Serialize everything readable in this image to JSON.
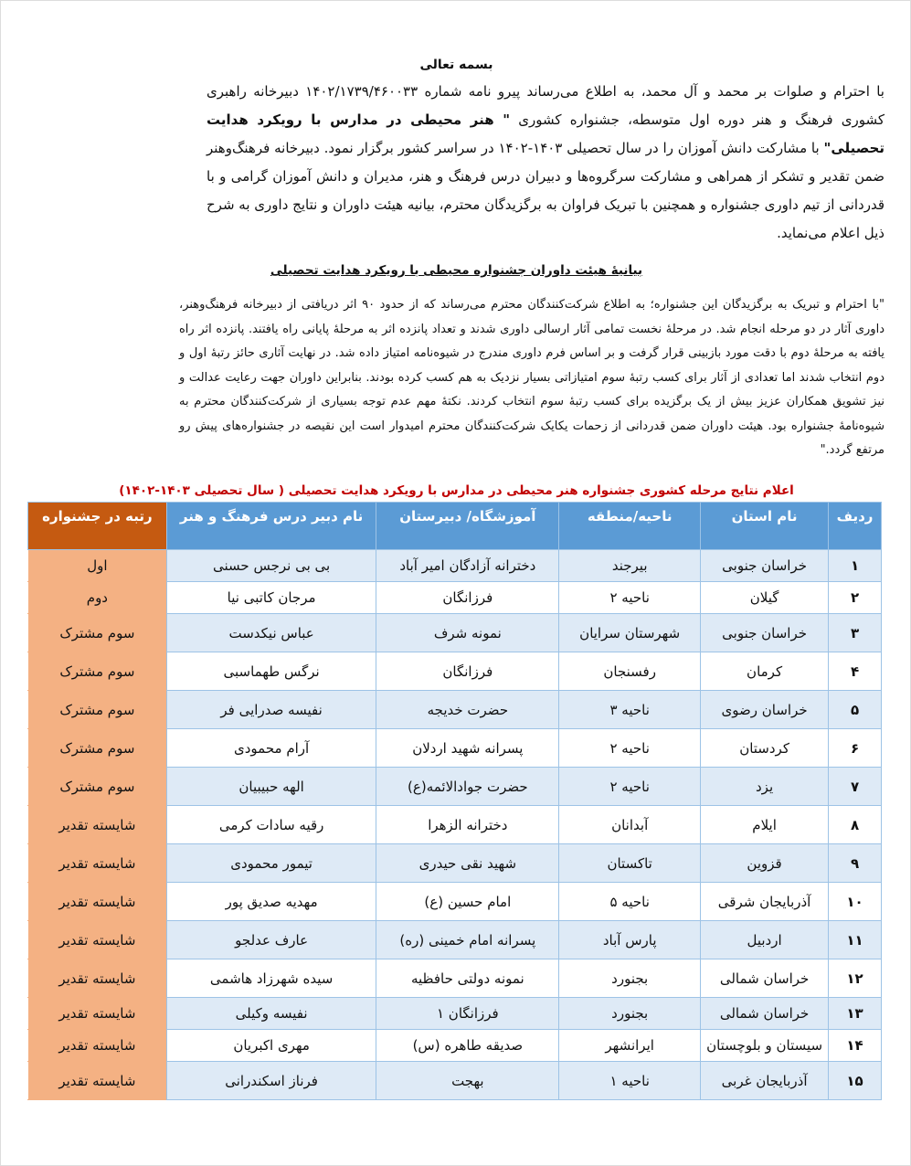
{
  "header": {
    "basmala": "بسمه تعالی"
  },
  "intro": {
    "part1": "با احترام و صلوات بر محمد و آل محمد، به اطلاع می‌رساند پیرو نامه شماره ۱۴۰۲/۱۷۳۹/۴۶۰۰۳۳ دبیرخانه راهبری کشوری فرهنگ و هنر دوره اول متوسطه، جشنواره کشوری",
    "festival_name": "\" هنر محیطی در مدارس با رویکرد هدایت تحصیلی\"",
    "part2": "با مشارکت دانش آموزان را در سال تحصیلی ۱۴۰۳-۱۴۰۲ در سراسر کشور برگزار نمود. دبیرخانه فرهنگ‌وهنر ضمن تقدیر و تشکر از همراهی و مشارکت سرگروه‌ها و دبیران درس فرهنگ و هنر، مدیران و دانش آموزان گرامی و با قدردانی از تیم داوری جشنواره و همچنین با تبریک فراوان به برگزیدگان محترم، بیانیه هیئت داوران و نتایج داوری به شرح ذیل اعلام می‌نماید."
  },
  "statement": {
    "title": "بیانیهٔ هیئت داوران جشنواره محیطی با رویکرد هدایت تحصیلی",
    "body": "\"با احترام و تبریک به برگزیدگان این جشنواره؛ به اطلاع شرکت‌کنندگان محترم می‌رساند که از حدود ۹۰ اثر دریافتی از دبیرخانه فرهنگ‌وهنر، داوری آثار در دو مرحله انجام شد. در مرحلهٔ نخست تمامی آثار ارسالی داوری شدند و تعداد پانزده اثر به مرحلهٔ پایانی راه یافتند. پانزده اثر راه یافته به مرحلهٔ دوم با دقت مورد بازبینی قرار گرفت و بر اساس فرم داوری مندرج در شیوه‌نامه امتیاز داده شد. در نهایت آثاری حائز رتبهٔ اول و دوم انتخاب شدند اما تعدادی از آثار برای کسب رتبهٔ سوم امتیازاتی بسیار نزدیک به هم کسب کرده بودند. بنابراین داوران جهت رعایت عدالت و نیز تشویق همکاران عزیز بیش از یک برگزیده برای کسب رتبهٔ سوم انتخاب کردند. نکتهٔ مهم عدم توجه بسیاری از شرکت‌کنندگان محترم به شیوه‌نامهٔ جشنواره بود. هیئت داوران ضمن قدردانی از زحمات یکایک شرکت‌کنندگان محترم امیدوار است این نقیصه در جشنواره‌های پیش رو مرتفع گردد.\""
  },
  "results": {
    "title": "اعلام نتایج مرحله کشوری جشنواره هنر محیطی در مدارس با رویکرد هدایت تحصیلی ( سال تحصیلی ۱۴۰۳-۱۴۰۲)",
    "colors": {
      "header": "#5b9bd5",
      "rank_header": "#c55a11",
      "rank_cell": "#f4b183",
      "row_alt": "#deeaf6",
      "title": "#c00000"
    },
    "headers": [
      "ردیف",
      "نام استان",
      "ناحیه/منطقه",
      "آموزشگاه/ دبیرستان",
      "نام دبیر درس فرهنگ و هنر",
      "رتبه در جشنواره"
    ],
    "rows": [
      [
        "۱",
        "خراسان جنوبی",
        "بیرجند",
        "دخترانه آزادگان امیر آباد",
        "بی بی نرجس حسنی",
        "اول"
      ],
      [
        "۲",
        "گیلان",
        "ناحیه ۲",
        "فرزانگان",
        "مرجان کاتبی نیا",
        "دوم"
      ],
      [
        "۳",
        "خراسان جنوبی",
        "شهرستان سرایان",
        "نمونه شرف",
        "عباس نیکدست",
        "سوم مشترک"
      ],
      [
        "۴",
        "کرمان",
        "رفسنجان",
        "فرزانگان",
        "نرگس طهماسبی",
        "سوم مشترک"
      ],
      [
        "۵",
        "خراسان رضوی",
        "ناحیه ۳",
        "حضرت خدیجه",
        "نفیسه صدرایی فر",
        "سوم مشترک"
      ],
      [
        "۶",
        "کردستان",
        "ناحیه ۲",
        "پسرانه شهید اردلان",
        "آرام محمودی",
        "سوم مشترک"
      ],
      [
        "۷",
        "یزد",
        "ناحیه ۲",
        "حضرت جوادالائمه(ع)",
        "الهه حبیبیان",
        "سوم مشترک"
      ],
      [
        "۸",
        "ایلام",
        "آبدانان",
        "دخترانه الزهرا",
        "رقیه سادات کرمی",
        "شایسته تقدیر"
      ],
      [
        "۹",
        "قزوین",
        "تاکستان",
        "شهید نقی حیدری",
        "تیمور محمودی",
        "شایسته تقدیر"
      ],
      [
        "۱۰",
        "آذربایجان شرقی",
        "ناحیه ۵",
        "امام حسین (ع)",
        "مهدیه صدیق پور",
        "شایسته تقدیر"
      ],
      [
        "۱۱",
        "اردبیل",
        "پارس آباد",
        "پسرانه امام خمینی (ره)",
        "عارف عدلجو",
        "شایسته تقدیر"
      ],
      [
        "۱۲",
        "خراسان شمالی",
        "بجنورد",
        "نمونه دولتی حافظیه",
        "سیده شهرزاد هاشمی",
        "شایسته تقدیر"
      ],
      [
        "۱۳",
        "خراسان شمالی",
        "بجنورد",
        "فرزانگان ۱",
        "نفیسه وکیلی",
        "شایسته تقدیر"
      ],
      [
        "۱۴",
        "سیستان و بلوچستان",
        "ایرانشهر",
        "صدیقه طاهره (س)",
        "مهری اکبریان",
        "شایسته تقدیر"
      ],
      [
        "۱۵",
        "آذربایجان غربی",
        "ناحیه ۱",
        "بهجت",
        "فرناز اسکندرانی",
        "شایسته تقدیر"
      ]
    ]
  }
}
